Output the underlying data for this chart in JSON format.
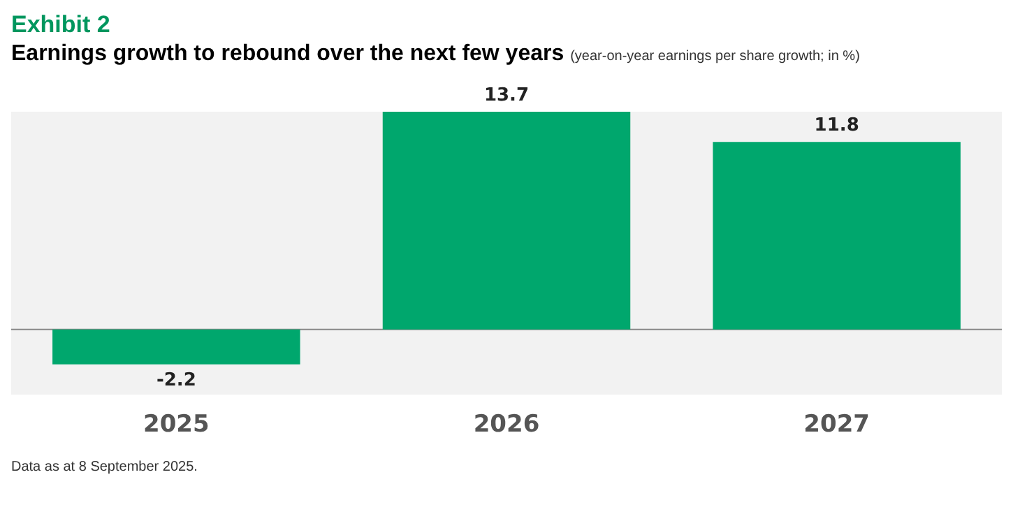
{
  "chart_data": {
    "type": "bar",
    "title": "Exhibit 2",
    "subtitle": "Earnings growth to rebound over the next few years",
    "ylabel": "(year-on-year earnings per share growth; in %)",
    "categories": [
      "2025",
      "2026",
      "2027"
    ],
    "values": [
      -2.2,
      13.7,
      11.8
    ],
    "color": "#00a76d",
    "data_labels": true,
    "legend": false,
    "grid": false,
    "annotations": [
      "Data as at 8 September 2025."
    ]
  }
}
